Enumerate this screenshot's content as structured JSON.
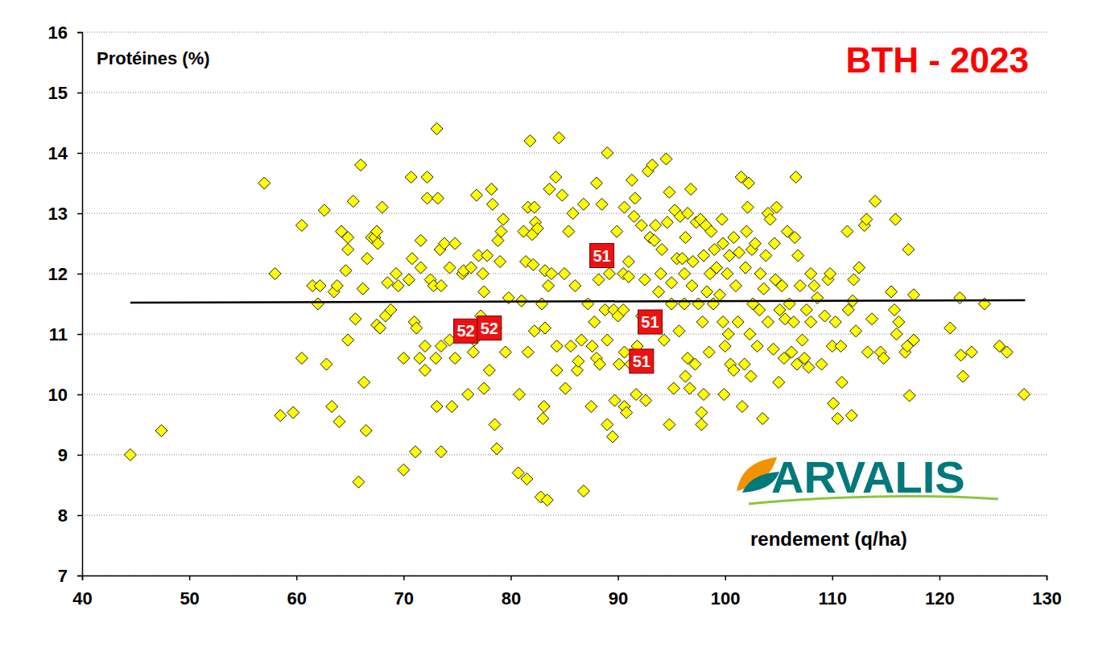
{
  "chart_data": {
    "type": "scatter",
    "title": "BTH - 2023",
    "y_label": "Protéines (%)",
    "x_label": "rendement (q/ha)",
    "logo": "ARVALIS",
    "color": "#ffff00",
    "marker": "diamond",
    "grid": true,
    "xlim": [
      40,
      130
    ],
    "xticks": [
      40,
      50,
      60,
      70,
      80,
      90,
      100,
      110,
      120,
      130
    ],
    "ylim": [
      7,
      16
    ],
    "yticks": [
      7,
      8,
      9,
      10,
      11,
      12,
      13,
      14,
      15,
      16
    ],
    "x": [
      44.5,
      47.4,
      57,
      58,
      58.5,
      59.7,
      60.5,
      60.5,
      61.5,
      62,
      62.2,
      62.6,
      62.8,
      63.5,
      63.3,
      63.8,
      64,
      64.2,
      64.8,
      64.8,
      64.6,
      64.8,
      65.3,
      65.5,
      65.8,
      66,
      66.2,
      66.3,
      66.5,
      66.6,
      67,
      67.3,
      67.5,
      67.6,
      67.5,
      67.8,
      68,
      68.3,
      68.5,
      68.8,
      69.3,
      69.5,
      70,
      70,
      70.5,
      70.7,
      70.8,
      71,
      71.1,
      71.2,
      71.5,
      71.6,
      71.6,
      72,
      72,
      72.2,
      72.2,
      72.5,
      72.8,
      73,
      73.1,
      73.1,
      73.2,
      73.4,
      73.5,
      73.5,
      73.5,
      73.8,
      74.3,
      74.3,
      74.5,
      74.8,
      74.8,
      75.5,
      75.6,
      76,
      76.3,
      76.5,
      76.6,
      76.8,
      77,
      77.2,
      77.4,
      77.5,
      77.5,
      77.8,
      78,
      78.2,
      78.3,
      78.5,
      78.7,
      78.6,
      78.8,
      79,
      79.1,
      79.3,
      79.5,
      79.8,
      80.7,
      80.8,
      81,
      81.2,
      81.4,
      81.5,
      81.6,
      81.6,
      81.8,
      82,
      82.1,
      82.2,
      82.2,
      82.3,
      82.5,
      82.8,
      82.9,
      83,
      83.1,
      83.2,
      83.2,
      83.4,
      83.5,
      83.6,
      83.8,
      84.2,
      84.3,
      84.3,
      84.5,
      84.8,
      85,
      85.1,
      85.4,
      85.6,
      85.8,
      86,
      86.2,
      86.3,
      86.6,
      86.8,
      86.8,
      87.2,
      87.5,
      87.6,
      87.8,
      88,
      88,
      88.2,
      88.3,
      88.5,
      88.8,
      89,
      89,
      89,
      89.2,
      89.5,
      89.6,
      89.7,
      89.9,
      90,
      90.1,
      90.5,
      90.5,
      90.6,
      90.6,
      90.8,
      90.6,
      91,
      91,
      91.2,
      91.3,
      91.5,
      91.6,
      91.7,
      91.8,
      92.2,
      92.2,
      92.5,
      92.6,
      92.8,
      93,
      93.2,
      93.4,
      93.5,
      93.8,
      94,
      94.1,
      94.3,
      94.5,
      94.6,
      94.8,
      94.8,
      95,
      95,
      95.2,
      95.3,
      95.5,
      95.7,
      95.8,
      96,
      96.2,
      96.2,
      96.3,
      96.3,
      96.5,
      96.5,
      96.7,
      96.8,
      96.9,
      97,
      97.2,
      97.3,
      97.5,
      97.7,
      97.8,
      97.8,
      97.9,
      98,
      98,
      98.2,
      98.3,
      98.5,
      98.6,
      98.7,
      98.9,
      99,
      99.2,
      99.5,
      99.7,
      99.8,
      99.8,
      99.9,
      100,
      100.2,
      100.3,
      100.4,
      100.5,
      100.8,
      100.8,
      101,
      101.2,
      101.3,
      101.5,
      101.6,
      101.8,
      101.9,
      102,
      102.1,
      102.2,
      102.3,
      102.4,
      102.5,
      102.6,
      102.8,
      103,
      103.2,
      103.3,
      103.5,
      103.6,
      103.8,
      104,
      104,
      104.2,
      104.5,
      104.6,
      104.7,
      104.8,
      105,
      105.1,
      105.3,
      105.5,
      105.6,
      105.8,
      106,
      106.2,
      106.4,
      106.5,
      106.6,
      106.7,
      106.8,
      107,
      107.2,
      107.4,
      107.6,
      107.8,
      108,
      108,
      108.3,
      108.6,
      109,
      109.3,
      109.6,
      109.8,
      110,
      110.1,
      110.3,
      110.5,
      110.8,
      110.9,
      111.4,
      111.5,
      111.8,
      111.9,
      112,
      112.2,
      112.5,
      113,
      113.2,
      113.3,
      113.7,
      114,
      114.5,
      114.8,
      115.5,
      115.8,
      115.9,
      116,
      116.2,
      116.8,
      117,
      117.1,
      117.2,
      117.6,
      117.6,
      121,
      121.9,
      122,
      122.2,
      123,
      124.2,
      125.6,
      126.3,
      127.9
    ],
    "values": [
      9.0,
      9.4,
      13.5,
      12.0,
      9.65,
      9.7,
      12.8,
      10.6,
      11.8,
      11.5,
      11.8,
      13.05,
      10.5,
      11.7,
      9.8,
      11.8,
      9.55,
      12.7,
      12.4,
      12.6,
      12.05,
      10.9,
      13.2,
      11.25,
      8.55,
      13.8,
      11.75,
      10.2,
      9.4,
      12.25,
      12.6,
      12.6,
      12.7,
      12.5,
      11.15,
      11.1,
      13.1,
      11.3,
      11.85,
      11.4,
      12.0,
      11.8,
      10.6,
      8.75,
      11.9,
      13.6,
      12.25,
      11.2,
      9.05,
      11.1,
      10.6,
      12.55,
      12.1,
      10.4,
      10.8,
      13.6,
      13.25,
      11.9,
      11.8,
      10.6,
      9.8,
      14.4,
      13.25,
      12.4,
      11.8,
      10.8,
      9.05,
      12.5,
      10.9,
      12.1,
      9.8,
      12.5,
      10.6,
      12.0,
      12.05,
      10.0,
      12.1,
      10.7,
      10.9,
      13.3,
      12.3,
      11.3,
      12.0,
      11.7,
      10.1,
      12.3,
      10.4,
      13.4,
      13.15,
      9.5,
      9.1,
      11.1,
      12.55,
      12.2,
      12.7,
      12.9,
      10.7,
      11.6,
      8.7,
      10.0,
      11.55,
      12.7,
      12.2,
      8.6,
      13.1,
      10.7,
      14.2,
      12.65,
      12.15,
      13.1,
      11.05,
      12.85,
      12.75,
      8.3,
      11.5,
      9.6,
      9.8,
      11.1,
      12.05,
      8.25,
      11.8,
      13.4,
      12.0,
      13.6,
      10.8,
      10.4,
      14.25,
      13.3,
      12.0,
      10.1,
      12.7,
      10.8,
      13.0,
      11.8,
      10.4,
      10.55,
      10.9,
      13.15,
      8.4,
      11.5,
      9.8,
      10.8,
      11.2,
      13.5,
      10.6,
      11.9,
      10.5,
      13.15,
      11.4,
      14.0,
      9.5,
      10.9,
      12.0,
      9.3,
      11.4,
      9.9,
      12.7,
      11.3,
      10.5,
      11.4,
      12.0,
      9.8,
      13.1,
      9.7,
      10.7,
      12.2,
      11.95,
      10.5,
      13.55,
      12.95,
      13.25,
      10.0,
      10.8,
      11.3,
      12.8,
      11.9,
      9.9,
      13.7,
      12.6,
      13.8,
      12.55,
      12.8,
      11.7,
      12.0,
      12.4,
      10.9,
      13.9,
      12.85,
      9.5,
      13.35,
      11.5,
      11.85,
      10.1,
      13.05,
      12.25,
      11.05,
      12.95,
      12.25,
      11.5,
      12.0,
      12.6,
      10.3,
      10.6,
      13.0,
      10.1,
      13.4,
      11.8,
      12.2,
      10.5,
      12.85,
      11.5,
      12.9,
      9.5,
      9.7,
      11.2,
      10.0,
      12.3,
      12.8,
      11.7,
      10.7,
      12.0,
      12.7,
      11.5,
      12.4,
      12.1,
      11.65,
      12.9,
      12.5,
      11.2,
      10.0,
      10.8,
      12.0,
      11.0,
      12.3,
      10.5,
      12.6,
      10.4,
      11.8,
      11.2,
      12.35,
      13.6,
      9.8,
      10.5,
      12.1,
      12.7,
      13.1,
      13.5,
      11.0,
      10.3,
      12.4,
      11.5,
      12.5,
      10.8,
      11.4,
      12.0,
      9.6,
      11.75,
      12.3,
      13.0,
      11.2,
      12.9,
      10.75,
      12.5,
      11.9,
      13.1,
      10.2,
      11.4,
      11.8,
      10.6,
      11.25,
      12.7,
      11.5,
      10.7,
      11.2,
      12.6,
      13.6,
      10.5,
      12.3,
      11.8,
      10.9,
      10.6,
      11.4,
      10.45,
      12.0,
      11.2,
      11.8,
      11.6,
      10.5,
      11.3,
      11.9,
      12.0,
      10.8,
      9.85,
      11.2,
      9.6,
      10.8,
      10.2,
      12.7,
      11.4,
      9.65,
      11.55,
      11.9,
      11.05,
      12.1,
      12.8,
      12.9,
      10.7,
      11.25,
      13.2,
      10.7,
      10.6,
      11.7,
      11.4,
      12.9,
      11.0,
      11.2,
      10.7,
      10.8,
      12.4,
      9.98,
      11.65,
      10.9,
      11.1,
      11.6,
      10.65,
      10.3,
      10.7,
      11.5,
      10.8,
      10.7,
      10.0
    ],
    "trend_line": {
      "x": [
        44.5,
        128
      ],
      "values": [
        11.52,
        11.56
      ],
      "color": "#000000"
    },
    "annotations": {
      "x": [
        88.5,
        75.8,
        78,
        93,
        92.2
      ],
      "values": [
        12.3,
        11.05,
        11.1,
        11.2,
        10.55
      ],
      "labels": [
        "51",
        "52",
        "52",
        "51",
        "51"
      ],
      "color": "#ee1111"
    }
  }
}
